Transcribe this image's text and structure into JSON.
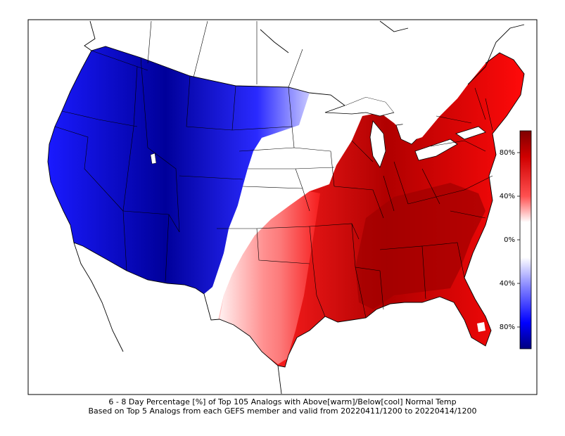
{
  "figure": {
    "caption_line1": "6 - 8 Day Percentage [%] of Top 105 Analogs with Above[warm]/Below[cool] Normal Temp",
    "caption_line2": "Based on Top 5 Analogs from each GEFS member and valid from 20220411/1200 to 20220414/1200"
  },
  "colorbar": {
    "tick_labels": [
      "80%",
      "40%",
      "0%",
      "40%",
      "80%"
    ],
    "top_color": "#7f0000",
    "mid_color": "#ffffff",
    "bottom_color": "#00007f",
    "warm_accent": "#ff0000",
    "cool_accent": "#0000ff"
  },
  "map": {
    "region": "Contiguous United States",
    "cool_color": "#0000ff",
    "warm_color": "#ff0000",
    "neutral_color": "#ffffff"
  }
}
